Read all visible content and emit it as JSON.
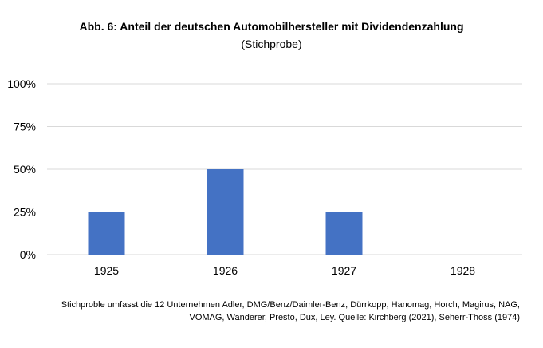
{
  "chart_data": {
    "type": "bar",
    "title": "Abb. 6: Anteil der deutschen Automobilhersteller mit Dividendenzahlung",
    "subtitle": "(Stichprobe)",
    "categories": [
      "1925",
      "1926",
      "1927",
      "1928"
    ],
    "values": [
      25,
      50,
      25,
      0
    ],
    "ylim": [
      0,
      100
    ],
    "yticks": [
      "0%",
      "25%",
      "50%",
      "75%",
      "100%"
    ],
    "ytick_values": [
      0,
      25,
      50,
      75,
      100
    ],
    "grid": true,
    "bar_color": "#4472C4",
    "grid_color": "#D9D9D9"
  },
  "source_note": {
    "line1": "Stichproble umfasst die 12 Unternehmen Adler, DMG/Benz/Daimler-Benz, Dürrkopp, Hanomag, Horch, Magirus, NAG,",
    "line2": "VOMAG, Wanderer, Presto, Dux, Ley. Quelle: Kirchberg (2021), Seherr-Thoss (1974)"
  }
}
